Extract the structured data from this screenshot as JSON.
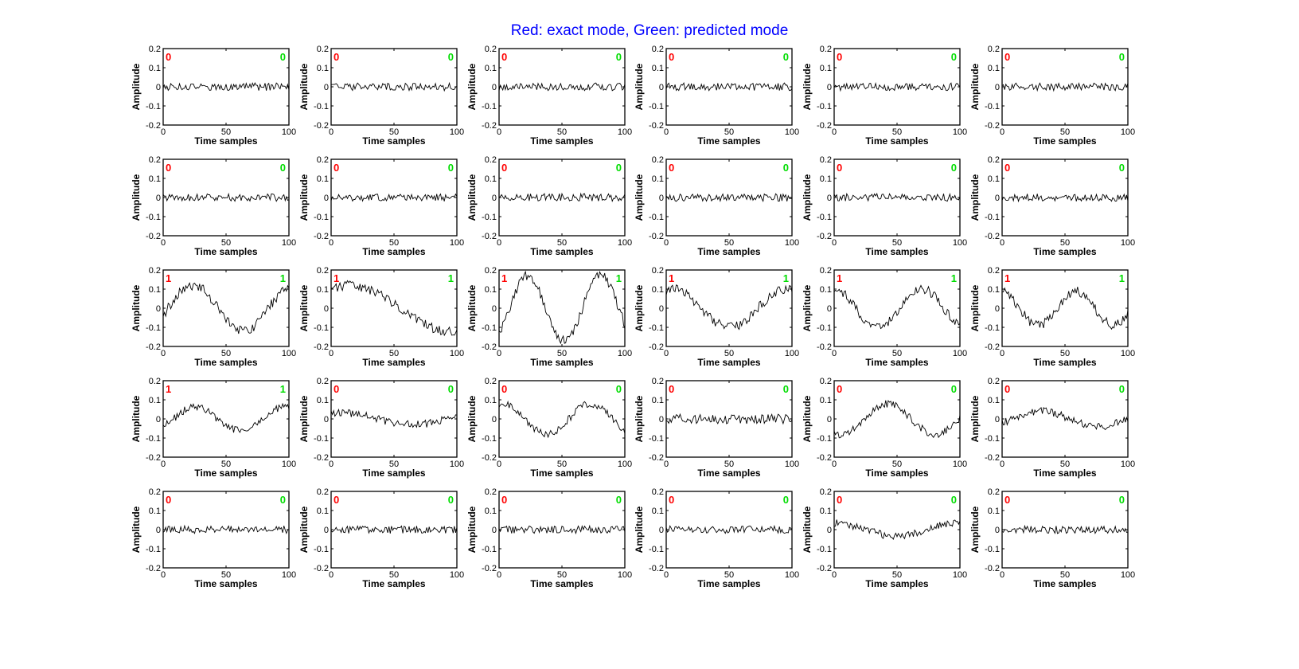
{
  "title": "Red: exact mode, Green: predicted mode",
  "colors": {
    "title": "#0000ff",
    "exact_mode": "#ff0000",
    "predicted_mode": "#00dd00",
    "signal": "#000000",
    "axes": "#000000"
  },
  "chart_data": {
    "type": "line",
    "layout": {
      "rows": 5,
      "cols": 6
    },
    "xlabel": "Time samples",
    "ylabel": "Amplitude",
    "xlim": [
      0,
      100
    ],
    "ylim": [
      -0.2,
      0.2
    ],
    "xticks": [
      0,
      50,
      100
    ],
    "yticks": [
      0.2,
      0.1,
      0,
      -0.1,
      -0.2
    ],
    "ytick_labels": [
      "0.2",
      "0.1",
      "0",
      "-0.1",
      "-0.2"
    ],
    "grid": false,
    "panels": [
      {
        "exact_mode": "0",
        "predicted_mode": "0",
        "signal": {
          "kind": "noise",
          "amp": 0.02,
          "seed": 1
        }
      },
      {
        "exact_mode": "0",
        "predicted_mode": "0",
        "signal": {
          "kind": "noise",
          "amp": 0.02,
          "seed": 2
        }
      },
      {
        "exact_mode": "0",
        "predicted_mode": "0",
        "signal": {
          "kind": "noise",
          "amp": 0.02,
          "seed": 3
        }
      },
      {
        "exact_mode": "0",
        "predicted_mode": "0",
        "signal": {
          "kind": "noise",
          "amp": 0.02,
          "seed": 4
        }
      },
      {
        "exact_mode": "0",
        "predicted_mode": "0",
        "signal": {
          "kind": "noise",
          "amp": 0.02,
          "seed": 5
        }
      },
      {
        "exact_mode": "0",
        "predicted_mode": "0",
        "signal": {
          "kind": "noise",
          "amp": 0.02,
          "seed": 6
        }
      },
      {
        "exact_mode": "0",
        "predicted_mode": "0",
        "signal": {
          "kind": "noise",
          "amp": 0.02,
          "seed": 7
        }
      },
      {
        "exact_mode": "0",
        "predicted_mode": "0",
        "signal": {
          "kind": "noise",
          "amp": 0.02,
          "seed": 8
        }
      },
      {
        "exact_mode": "0",
        "predicted_mode": "0",
        "signal": {
          "kind": "noise",
          "amp": 0.02,
          "seed": 9
        }
      },
      {
        "exact_mode": "0",
        "predicted_mode": "0",
        "signal": {
          "kind": "noise",
          "amp": 0.02,
          "seed": 10
        }
      },
      {
        "exact_mode": "0",
        "predicted_mode": "0",
        "signal": {
          "kind": "noise",
          "amp": 0.02,
          "seed": 11
        }
      },
      {
        "exact_mode": "0",
        "predicted_mode": "0",
        "signal": {
          "kind": "noise",
          "amp": 0.02,
          "seed": 12
        }
      },
      {
        "exact_mode": "1",
        "predicted_mode": "1",
        "signal": {
          "kind": "sine",
          "amp": 0.12,
          "period": 80,
          "phase": -0.3,
          "noise": 0.025,
          "seed": 13
        }
      },
      {
        "exact_mode": "1",
        "predicted_mode": "1",
        "signal": {
          "kind": "sine",
          "amp": 0.12,
          "period": 160,
          "phase": 1.0,
          "noise": 0.025,
          "seed": 14
        }
      },
      {
        "exact_mode": "1",
        "predicted_mode": "1",
        "signal": {
          "kind": "sine",
          "amp": 0.17,
          "period": 58,
          "phase": -0.9,
          "noise": 0.025,
          "seed": 15
        }
      },
      {
        "exact_mode": "1",
        "predicted_mode": "1",
        "signal": {
          "kind": "sine",
          "amp": 0.1,
          "period": 90,
          "phase": 1.2,
          "noise": 0.025,
          "seed": 16
        }
      },
      {
        "exact_mode": "1",
        "predicted_mode": "1",
        "signal": {
          "kind": "sine",
          "amp": 0.1,
          "period": 70,
          "phase": 1.6,
          "noise": 0.025,
          "seed": 17
        }
      },
      {
        "exact_mode": "1",
        "predicted_mode": "1",
        "signal": {
          "kind": "sine",
          "amp": 0.09,
          "period": 60,
          "phase": 1.7,
          "noise": 0.025,
          "seed": 18
        }
      },
      {
        "exact_mode": "1",
        "predicted_mode": "1",
        "signal": {
          "kind": "sine",
          "amp": 0.06,
          "period": 70,
          "phase": -0.7,
          "noise": 0.02,
          "seed": 19
        }
      },
      {
        "exact_mode": "0",
        "predicted_mode": "0",
        "signal": {
          "kind": "sine",
          "amp": 0.03,
          "period": 110,
          "phase": 1.0,
          "noise": 0.02,
          "seed": 20
        }
      },
      {
        "exact_mode": "0",
        "predicted_mode": "0",
        "signal": {
          "kind": "sine",
          "amp": 0.08,
          "period": 70,
          "phase": 1.3,
          "noise": 0.02,
          "seed": 21
        }
      },
      {
        "exact_mode": "0",
        "predicted_mode": "0",
        "signal": {
          "kind": "noise",
          "amp": 0.025,
          "seed": 22
        }
      },
      {
        "exact_mode": "0",
        "predicted_mode": "0",
        "signal": {
          "kind": "sine",
          "amp": 0.08,
          "period": 75,
          "phase": -2.0,
          "noise": 0.02,
          "seed": 23
        }
      },
      {
        "exact_mode": "0",
        "predicted_mode": "0",
        "signal": {
          "kind": "sine",
          "amp": 0.04,
          "period": 90,
          "phase": -0.6,
          "noise": 0.02,
          "seed": 24
        }
      },
      {
        "exact_mode": "0",
        "predicted_mode": "0",
        "signal": {
          "kind": "noise",
          "amp": 0.02,
          "seed": 25
        }
      },
      {
        "exact_mode": "0",
        "predicted_mode": "0",
        "signal": {
          "kind": "noise",
          "amp": 0.02,
          "seed": 26
        }
      },
      {
        "exact_mode": "0",
        "predicted_mode": "0",
        "signal": {
          "kind": "noise",
          "amp": 0.02,
          "seed": 27
        }
      },
      {
        "exact_mode": "0",
        "predicted_mode": "0",
        "signal": {
          "kind": "noise",
          "amp": 0.02,
          "seed": 28
        }
      },
      {
        "exact_mode": "0",
        "predicted_mode": "0",
        "signal": {
          "kind": "sine",
          "amp": 0.035,
          "period": 100,
          "phase": 1.6,
          "noise": 0.02,
          "seed": 29
        }
      },
      {
        "exact_mode": "0",
        "predicted_mode": "0",
        "signal": {
          "kind": "noise",
          "amp": 0.02,
          "seed": 30
        }
      }
    ]
  }
}
